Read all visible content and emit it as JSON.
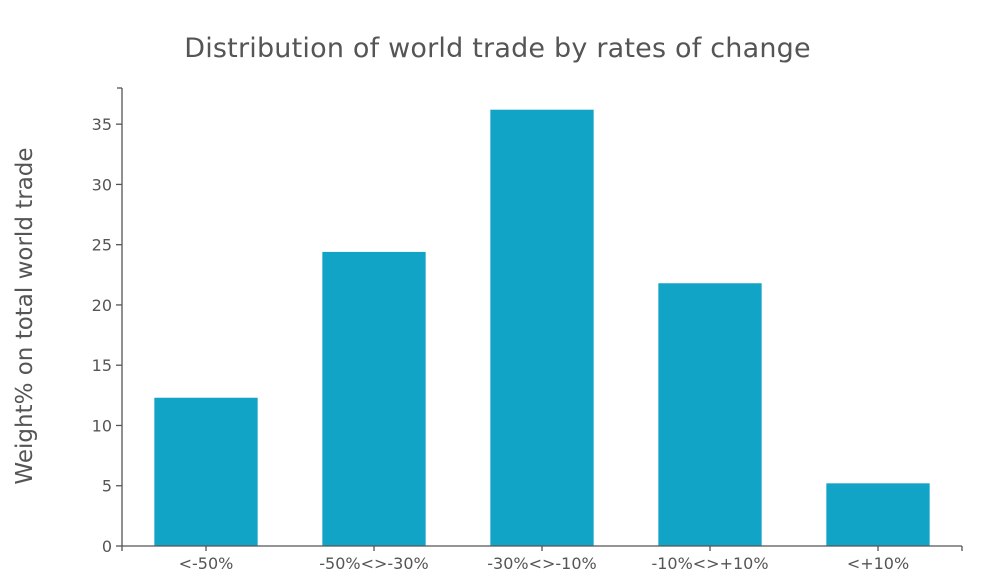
{
  "chart_data": {
    "type": "bar",
    "title": "Distribution of world trade by rates of change",
    "xlabel": "",
    "ylabel": "Weight% on total world trade",
    "categories": [
      "<-50%",
      "-50%<>-30%",
      "-30%<>-10%",
      "-10%<>+10%",
      "<+10%"
    ],
    "values": [
      12.3,
      24.4,
      36.2,
      21.8,
      5.2
    ],
    "ylim": [
      0,
      38
    ],
    "yticks": [
      0,
      5,
      10,
      15,
      20,
      25,
      30,
      35
    ],
    "grid": false,
    "legend": "none",
    "bar_color": "#12a4c6"
  }
}
